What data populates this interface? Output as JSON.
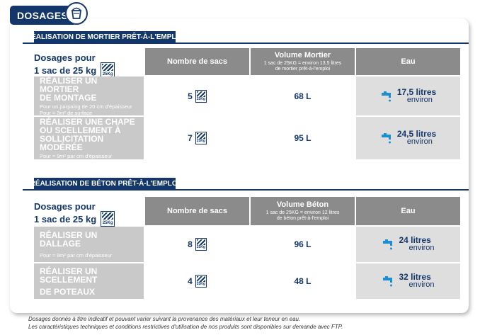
{
  "header": {
    "title": "DOSAGES"
  },
  "dosage_label": {
    "line1": "Dosages pour",
    "line2": "1 sac de 25 kg",
    "bag_kg": "25Kg"
  },
  "mortier": {
    "section_title": "RÉALISATION DE MORTIER PRÊT-À-L'EMPLOI",
    "col_sacs": "Nombre de sacs",
    "col_volume": "Volume Mortier",
    "col_volume_sub1": "1 sac de 25KG = environ 13,5 litres",
    "col_volume_sub2": "de mortier prêt-à-l'emploi",
    "col_eau": "Eau",
    "rows": [
      {
        "title1": "Réaliser un mortier",
        "title2": "de montage",
        "title3": "",
        "sub1": "Pour un parpaing de 20 cm d'épaisseur",
        "sub2": "Pour ≈ 3m² de surface",
        "sacs": "5",
        "volume": "68 L",
        "eau1": "17,5 litres",
        "eau2": "environ"
      },
      {
        "title1": "Réaliser une chape",
        "title2": "ou scellement à",
        "title3": "sollicitation modérée",
        "sub1": "Pour ≈ 9m² par cm d'épaisseur",
        "sub2": "",
        "sacs": "7",
        "volume": "95 L",
        "eau1": "24,5 litres",
        "eau2": "environ"
      }
    ]
  },
  "beton": {
    "section_title": "RÉALISATION DE BÉTON PRÊT-À-L'EMPLOI",
    "col_sacs": "Nombre de sacs",
    "col_volume": "Volume Béton",
    "col_volume_sub1": "1 sac de 25KG = environ 12 litres",
    "col_volume_sub2": "de béton prêt-à-l'emploi",
    "col_eau": "Eau",
    "rows": [
      {
        "title1": "Réaliser un dallage",
        "title2": "",
        "sub1": "Pour ≈ 9m² par cm d'épaisseur",
        "sacs": "8",
        "volume": "96 L",
        "eau1": "24 litres",
        "eau2": "environ"
      },
      {
        "title1": "Réaliser un scellement",
        "title2": "de poteaux",
        "sub1": "",
        "sacs": "4",
        "volume": "48 L",
        "eau1": "32 litres",
        "eau2": "environ"
      }
    ]
  },
  "footnote": {
    "line1": "Dosages donnés à titre indicatif et pouvant varier suivant la provenance des matériaux et leur teneur en eau.",
    "line2": "Les caractéristiques techniques et conditions restrictives d'utilisation de nos produits sont disponibles sur demande avec FTP."
  },
  "colors": {
    "navy": "#13376b",
    "header_gray": "#8b8b8b",
    "task_gray": "#c9c9c9",
    "water_bg": "#dedede",
    "tap_blue": "#1a8fd6"
  }
}
